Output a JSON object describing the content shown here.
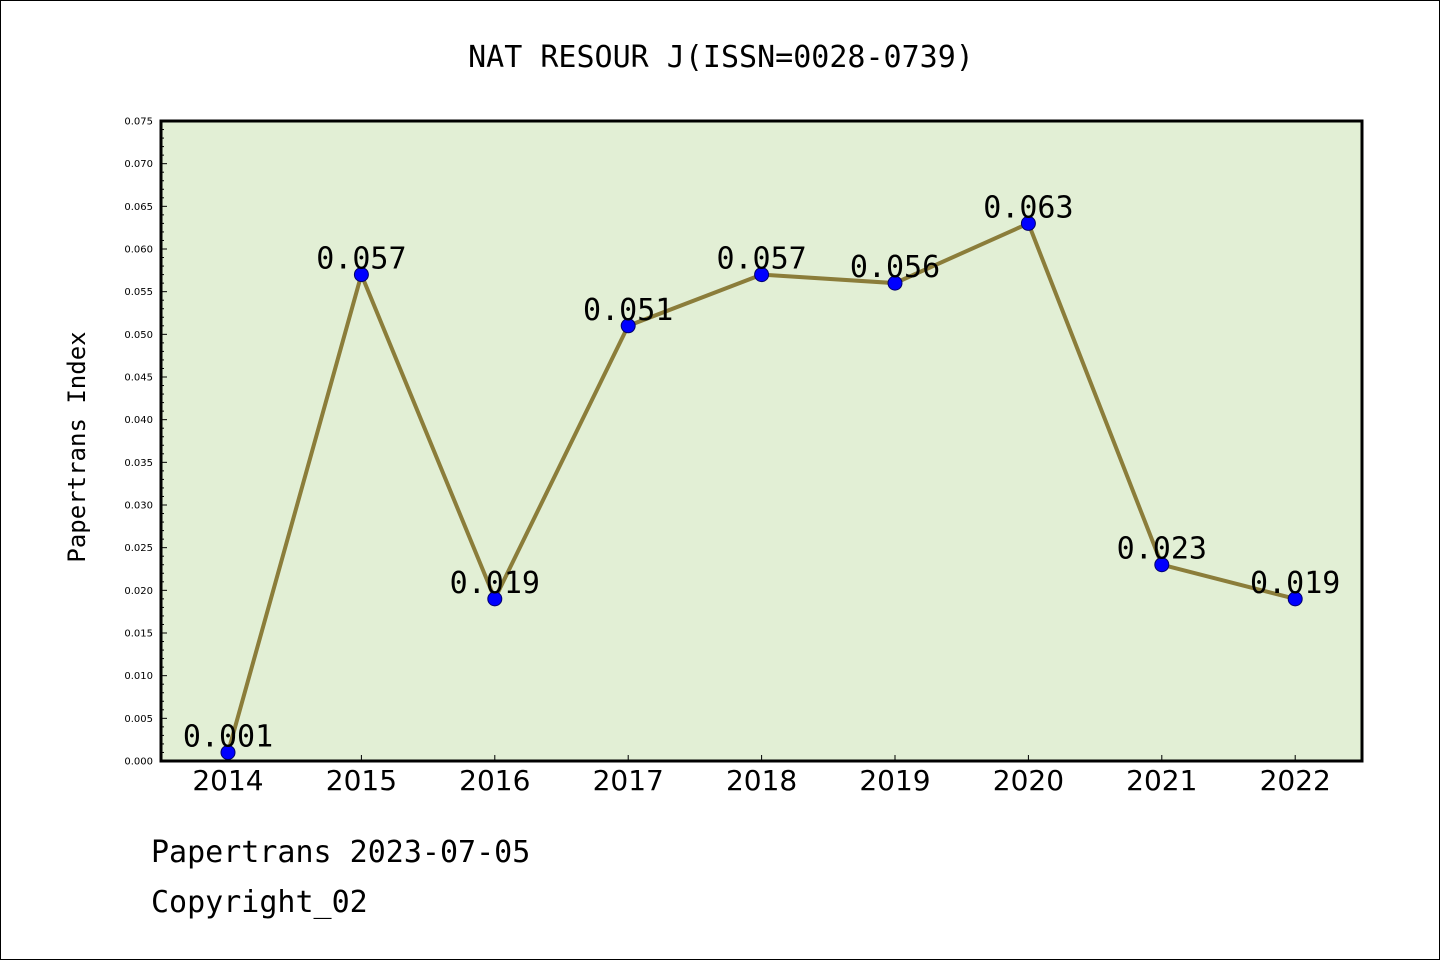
{
  "chart_data": {
    "type": "line",
    "title": "NAT RESOUR J(ISSN=0028-0739)",
    "xlabel": "",
    "ylabel": "Papertrans Index",
    "categories": [
      "2014",
      "2015",
      "2016",
      "2017",
      "2018",
      "2019",
      "2020",
      "2021",
      "2022"
    ],
    "series": [
      {
        "values": [
          0.001,
          0.057,
          0.019,
          0.051,
          0.057,
          0.056,
          0.063,
          0.023,
          0.019
        ],
        "data_labels": [
          "0.001",
          "0.057",
          "0.019",
          "0.051",
          "0.057",
          "0.056",
          "0.063",
          "0.023",
          "0.019"
        ],
        "line_color": "#8b7d3a",
        "marker_color": "#0000ff"
      }
    ],
    "ylim": [
      0,
      0.075
    ],
    "y_ticks": [
      "0.000",
      "0.005",
      "0.010",
      "0.015",
      "0.020",
      "0.025",
      "0.030",
      "0.035",
      "0.040",
      "0.045",
      "0.050",
      "0.055",
      "0.060",
      "0.065",
      "0.070",
      "0.075"
    ],
    "plot_background": "#e2efd5",
    "grid": false,
    "legend": "none"
  },
  "footer": {
    "date_line": "Papertrans 2023-07-05",
    "copyright_line": "Copyright_02"
  }
}
